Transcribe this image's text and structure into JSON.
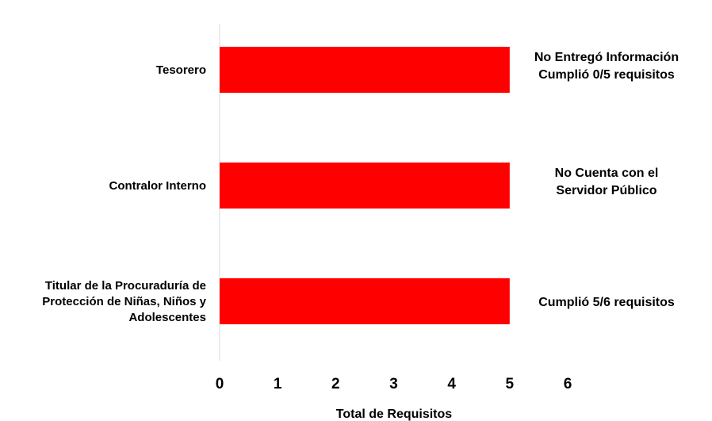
{
  "chart_data": {
    "type": "bar",
    "orientation": "horizontal",
    "categories": [
      [
        "Tesorero"
      ],
      [
        "Contralor Interno"
      ],
      [
        "Titular de la Procuraduría de",
        "Protección de Niñas, Niños y",
        "Adolescentes"
      ]
    ],
    "values": [
      5,
      5,
      5
    ],
    "annotations": [
      [
        "No Entregó Información",
        "Cumplió 0/5 requisitos"
      ],
      [
        "No Cuenta con el",
        "Servidor Público"
      ],
      [
        "Cumplió 5/6 requisitos"
      ]
    ],
    "xlabel": "Total de Requisitos",
    "xlim": [
      0,
      6
    ],
    "xticks": [
      "0",
      "1",
      "2",
      "3",
      "4",
      "5",
      "6"
    ],
    "bar_color": "#ff0000",
    "grid": false,
    "legend": "none"
  }
}
